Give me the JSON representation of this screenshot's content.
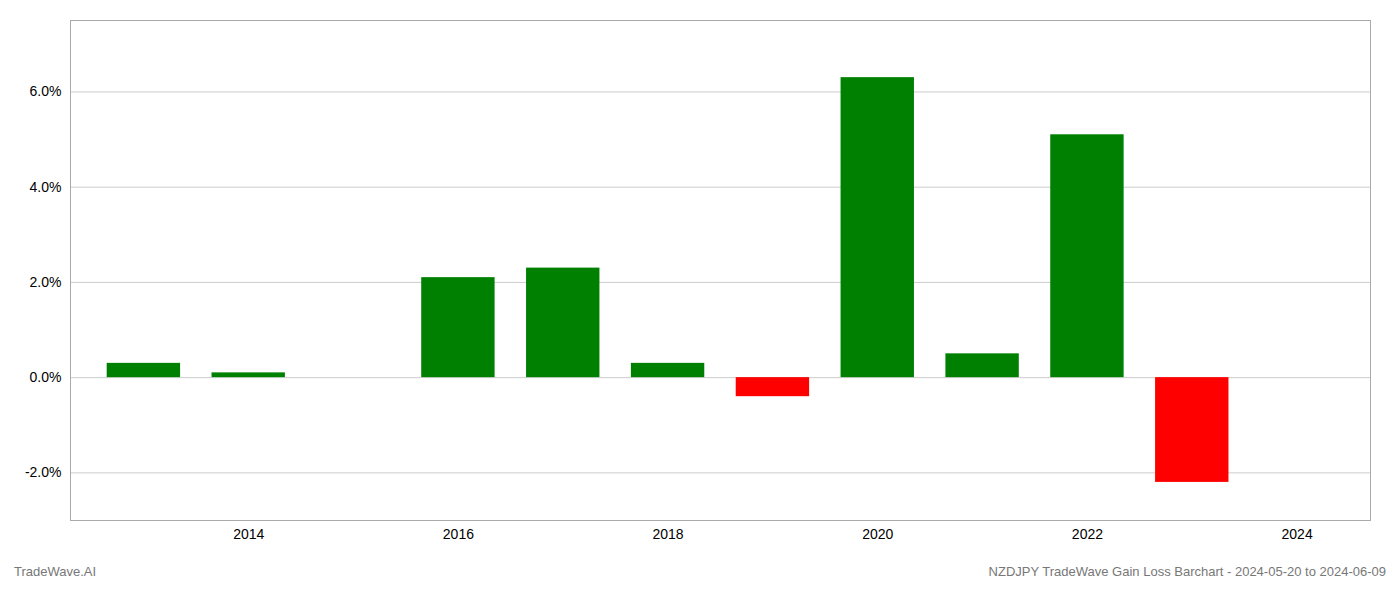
{
  "chart_data": {
    "type": "bar",
    "x": [
      2013,
      2014,
      2015,
      2016,
      2017,
      2018,
      2019,
      2020,
      2021,
      2022,
      2023
    ],
    "values": [
      0.003,
      0.001,
      0.0,
      0.021,
      0.023,
      0.003,
      -0.004,
      0.063,
      0.005,
      0.051,
      -0.022
    ],
    "colors": [
      "#008000",
      "#008000",
      "#008000",
      "#008000",
      "#008000",
      "#008000",
      "#ff0000",
      "#008000",
      "#008000",
      "#008000",
      "#ff0000"
    ],
    "xlim": [
      2012.3,
      2024.7
    ],
    "xticks": [
      2014,
      2016,
      2018,
      2020,
      2022,
      2024
    ],
    "ylim": [
      -0.03,
      0.075
    ],
    "yticks": [
      {
        "value": -0.02,
        "label": "-2.0%"
      },
      {
        "value": 0.0,
        "label": "0.0%"
      },
      {
        "value": 0.02,
        "label": "2.0%"
      },
      {
        "value": 0.04,
        "label": "4.0%"
      },
      {
        "value": 0.06,
        "label": "6.0%"
      }
    ],
    "grid": true,
    "annotations": [
      "TradeWave.AI",
      "NZDJPY TradeWave Gain Loss Barchart - 2024-05-20 to 2024-06-09"
    ]
  }
}
